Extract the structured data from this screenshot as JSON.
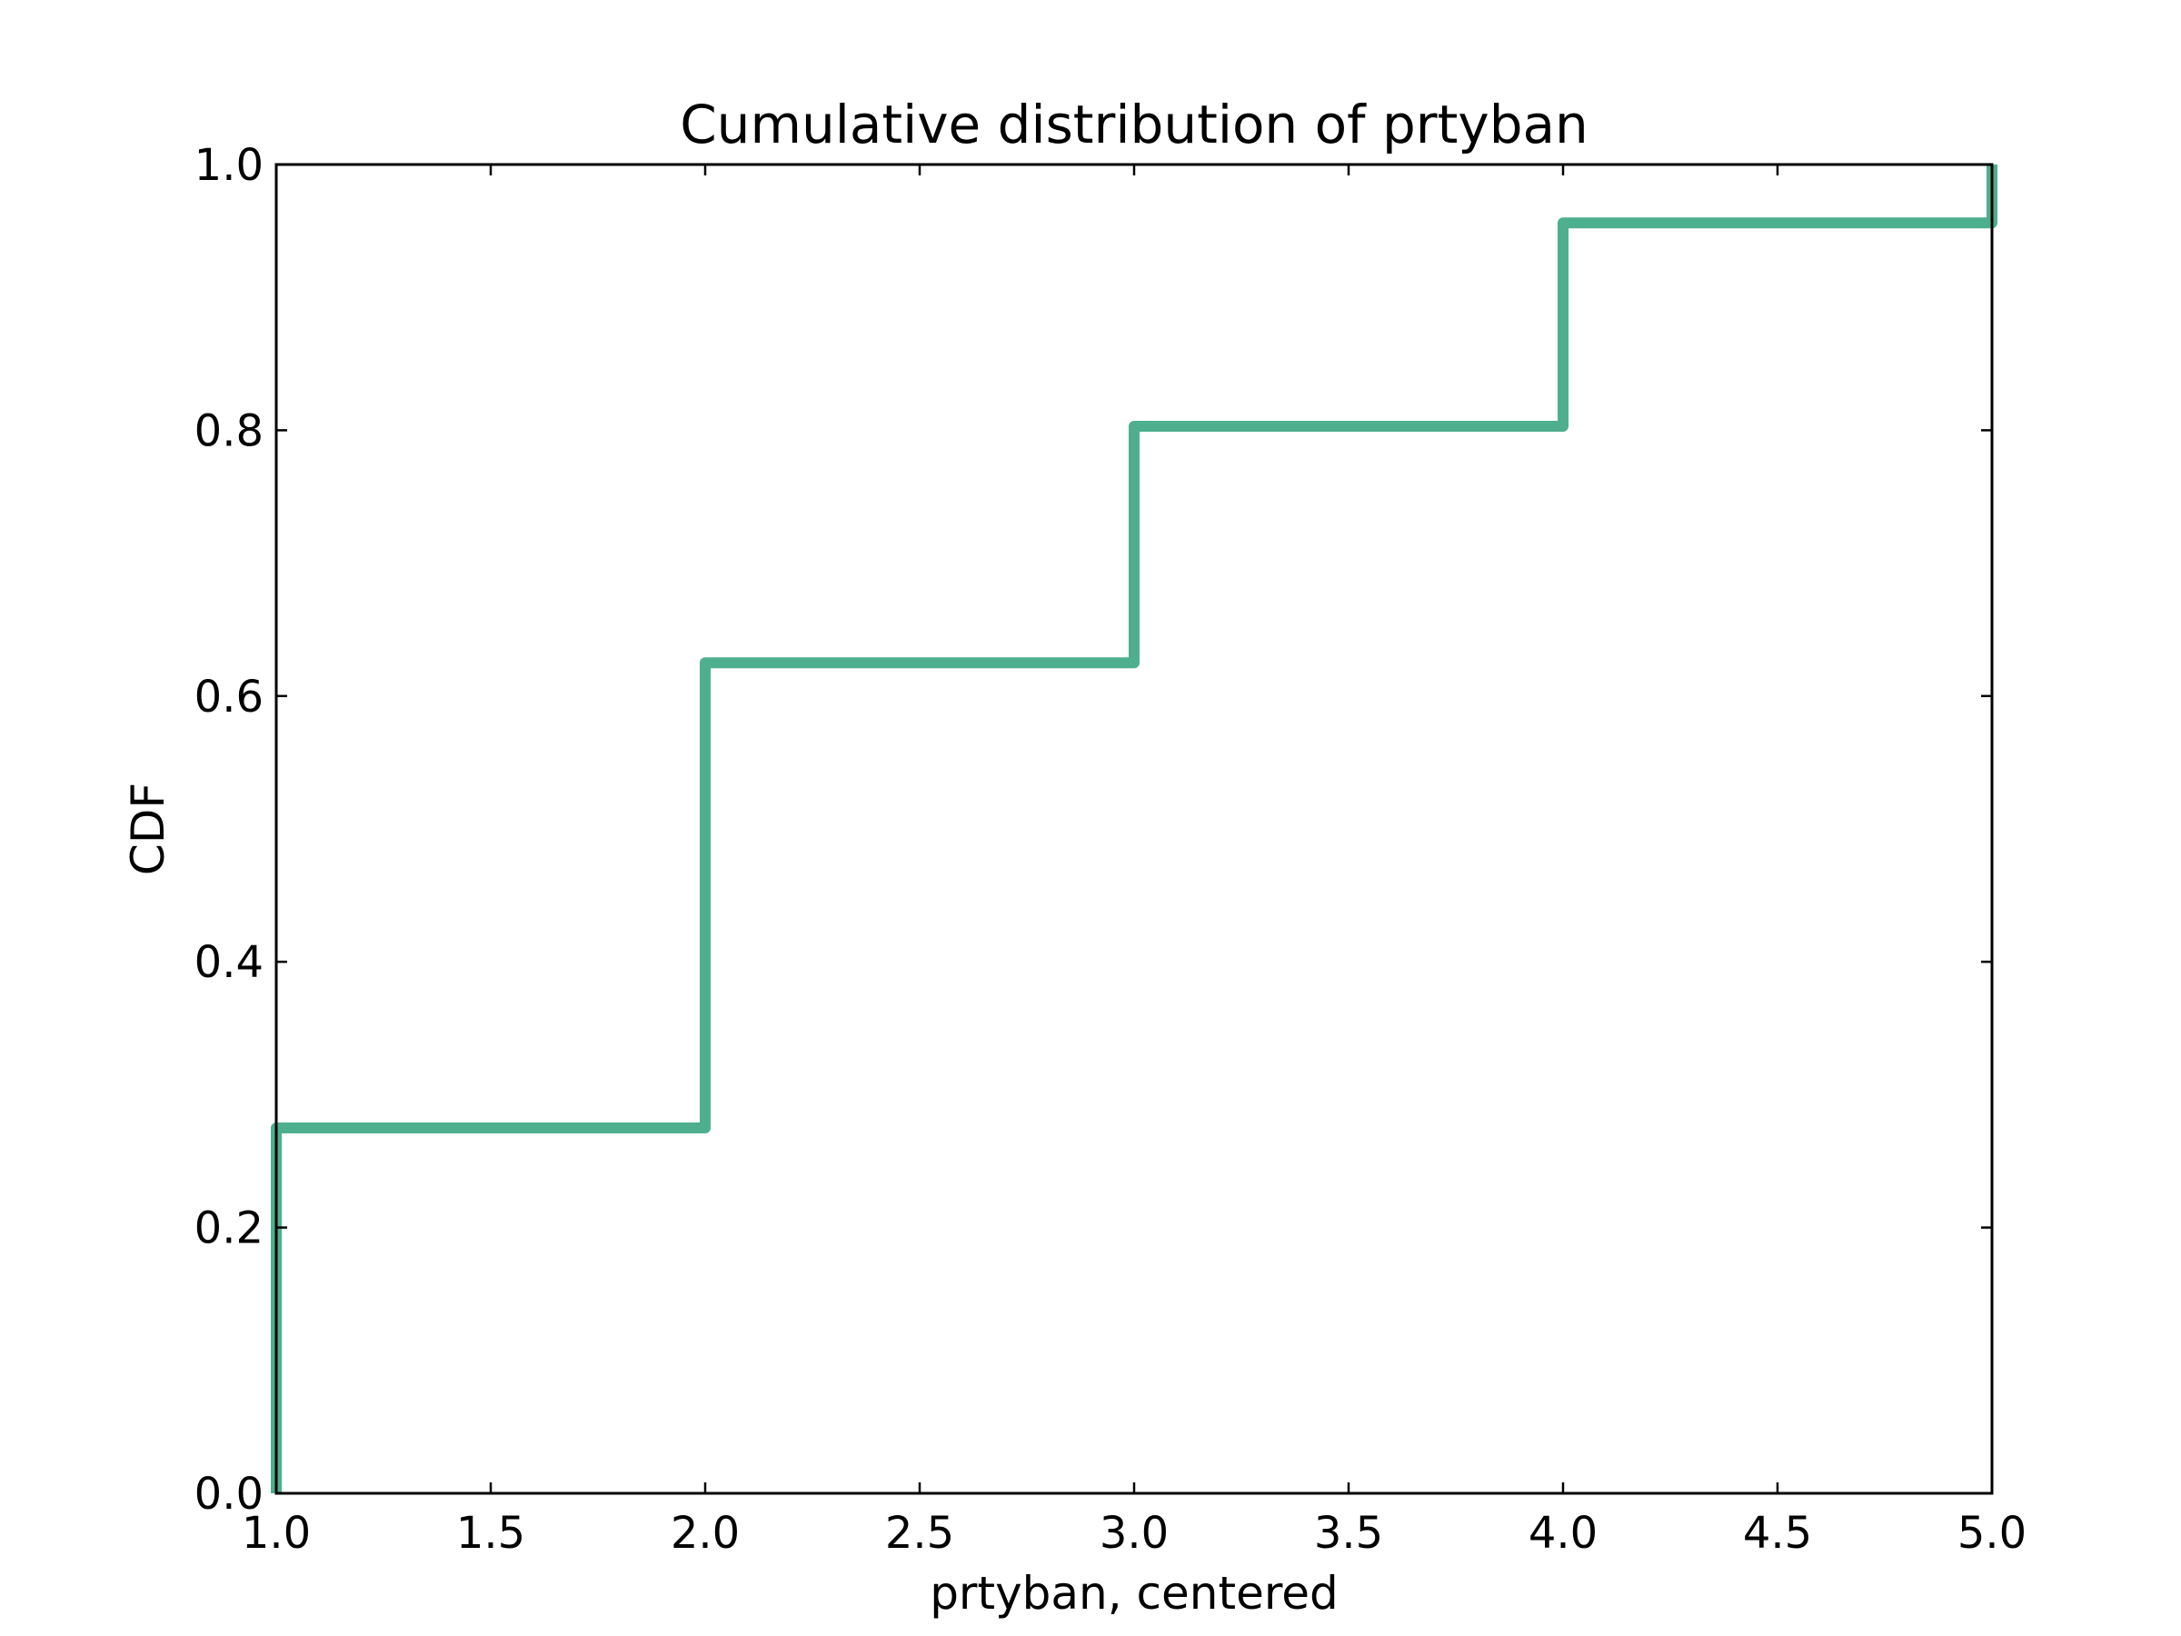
{
  "chart_data": {
    "type": "line",
    "title": "Cumulative distribution of prtyban",
    "xlabel": "prtyban, centered",
    "ylabel": "CDF",
    "xlim": [
      1.0,
      5.0
    ],
    "ylim": [
      0.0,
      1.0
    ],
    "xticks": [
      "1.0",
      "1.5",
      "2.0",
      "2.5",
      "3.0",
      "3.5",
      "4.0",
      "4.5",
      "5.0"
    ],
    "yticks": [
      "0.0",
      "0.2",
      "0.4",
      "0.6",
      "0.8",
      "1.0"
    ],
    "grid": false,
    "series": [
      {
        "name": "prtyban",
        "step": true,
        "color": "#4daf8e",
        "x": [
          1.0,
          1.0,
          2.0,
          2.0,
          3.0,
          3.0,
          4.0,
          4.0,
          5.0,
          5.0
        ],
        "y": [
          0.0,
          0.275,
          0.275,
          0.625,
          0.625,
          0.803,
          0.803,
          0.956,
          0.956,
          1.0
        ]
      }
    ]
  }
}
